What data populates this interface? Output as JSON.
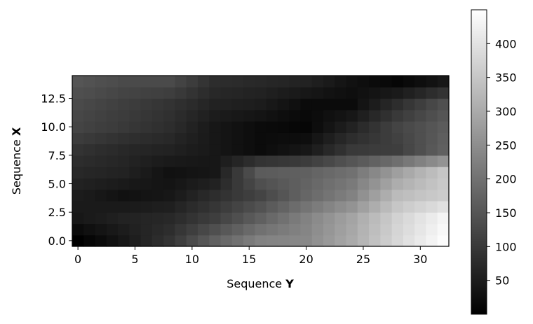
{
  "chart_data": {
    "type": "heatmap",
    "title": "",
    "xlabel_prefix": "Sequence ",
    "xlabel_bold": "Y",
    "ylabel_prefix": "Sequence ",
    "ylabel_bold": "X",
    "colormap": "gray",
    "x_range": [
      -0.5,
      32.5
    ],
    "y_range": [
      -0.5,
      14.5
    ],
    "x_ticks": [
      0,
      5,
      10,
      15,
      20,
      25,
      30
    ],
    "x_tick_labels": [
      "0",
      "5",
      "10",
      "15",
      "20",
      "25",
      "30"
    ],
    "y_ticks": [
      0.0,
      2.5,
      5.0,
      7.5,
      10.0,
      12.5
    ],
    "y_tick_labels": [
      "0.0",
      "2.5",
      "5.0",
      "7.5",
      "10.0",
      "12.5"
    ],
    "colorbar": {
      "min": 0,
      "max": 450,
      "ticks": [
        50,
        100,
        150,
        200,
        250,
        300,
        350,
        400
      ],
      "tick_labels": [
        "50",
        "100",
        "150",
        "200",
        "250",
        "300",
        "350",
        "400"
      ]
    },
    "anchors": {
      "row_index": [
        0,
        2,
        4,
        6,
        8,
        10,
        12,
        14
      ],
      "col_index": [
        0,
        4,
        8,
        12,
        16,
        20,
        24,
        28,
        32
      ],
      "values": [
        [
          0,
          40,
          90,
          170,
          230,
          240,
          300,
          380,
          445
        ],
        [
          40,
          60,
          70,
          110,
          170,
          230,
          290,
          370,
          430
        ],
        [
          50,
          30,
          40,
          80,
          120,
          180,
          230,
          330,
          360
        ],
        [
          70,
          60,
          30,
          40,
          160,
          170,
          200,
          280,
          350
        ],
        [
          90,
          70,
          60,
          40,
          20,
          40,
          100,
          110,
          170
        ],
        [
          120,
          100,
          80,
          40,
          20,
          10,
          60,
          120,
          160
        ],
        [
          130,
          110,
          90,
          60,
          50,
          20,
          20,
          80,
          140
        ],
        [
          150,
          130,
          130,
          80,
          70,
          60,
          30,
          10,
          40
        ]
      ]
    }
  }
}
